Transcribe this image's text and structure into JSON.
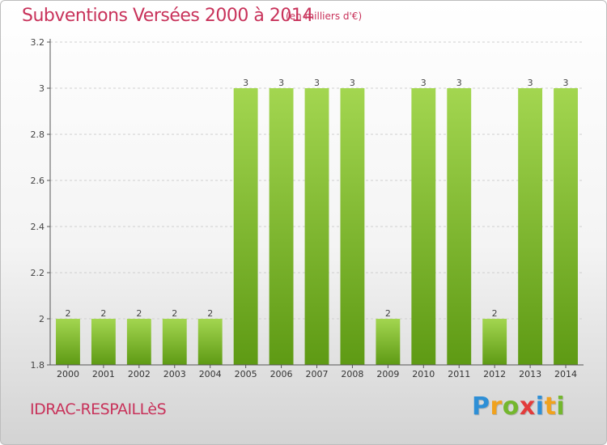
{
  "header": {
    "title": "Subventions Versées 2000 à 2014",
    "unit": "(en milliers d'€)"
  },
  "footer": {
    "commune": "IDRAC-RESPAILLèS",
    "brand_letters": [
      "P",
      "r",
      "o",
      "x",
      "i",
      "t",
      "i"
    ]
  },
  "colors": {
    "accent": "#c8325a",
    "bar_top": "#a3d650",
    "bar_bottom": "#5e9a14",
    "grid": "#cfcfcf",
    "axis": "#555555"
  },
  "chart_data": {
    "type": "bar",
    "categories": [
      "2000",
      "2001",
      "2002",
      "2003",
      "2004",
      "2005",
      "2006",
      "2007",
      "2008",
      "2009",
      "2010",
      "2011",
      "2012",
      "2013",
      "2014"
    ],
    "values": [
      2,
      2,
      2,
      2,
      2,
      3,
      3,
      3,
      3,
      2,
      3,
      3,
      2,
      3,
      3
    ],
    "data_labels": [
      "2",
      "2",
      "2",
      "2",
      "2",
      "3",
      "3",
      "3",
      "3",
      "2",
      "3",
      "3",
      "2",
      "3",
      "3"
    ],
    "ylim": [
      1.8,
      3.2
    ],
    "yticks": [
      1.8,
      2,
      2.2,
      2.4,
      2.6,
      2.8,
      3,
      3.2
    ],
    "ytick_labels": [
      "1.8",
      "2",
      "2.2",
      "2.4",
      "2.6",
      "2.8",
      "3",
      "3.2"
    ],
    "grid": "horizontal, dashed",
    "xlabel": "",
    "ylabel": ""
  }
}
